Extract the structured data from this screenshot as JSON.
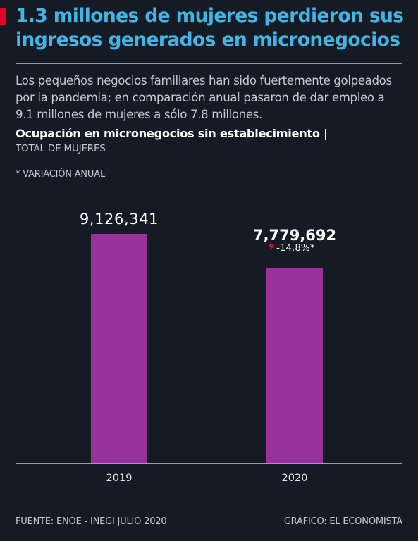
{
  "headline": "1.3 millones de mujeres perdieron sus ingresos generados en micronegocios",
  "dek": "Los pequeños negocios familiares han sido fuertemente golpeados por la pandemia; en comparación anual pasaron de dar empleo a 9.1 millones de mujeres a sólo 7.8 millones.",
  "chart_title": "Ocupación en micronegocios sin establecimiento",
  "chart_title_separator": "|",
  "chart_subtitle": "TOTAL DE MUJERES",
  "note": "* VARIACIÓN ANUAL",
  "footer": {
    "source": "FUENTE: ENOE - INEGI JULIO 2020",
    "credit": "GRÁFICO: EL ECONOMISTA"
  },
  "colors": {
    "background": "#141b24",
    "headline": "#3fb6e8",
    "accent": "#e4002b",
    "bar": "#96329a",
    "decrease_marker": "#e4002b"
  },
  "chart_data": {
    "type": "bar",
    "categories": [
      "2019",
      "2020"
    ],
    "values": [
      9126341,
      7779692
    ],
    "value_labels": [
      "9,126,341",
      "7,779,692"
    ],
    "change_label": "-14.8%*",
    "change_direction": "down",
    "ylim": [
      0,
      10000000
    ],
    "grid": false
  }
}
